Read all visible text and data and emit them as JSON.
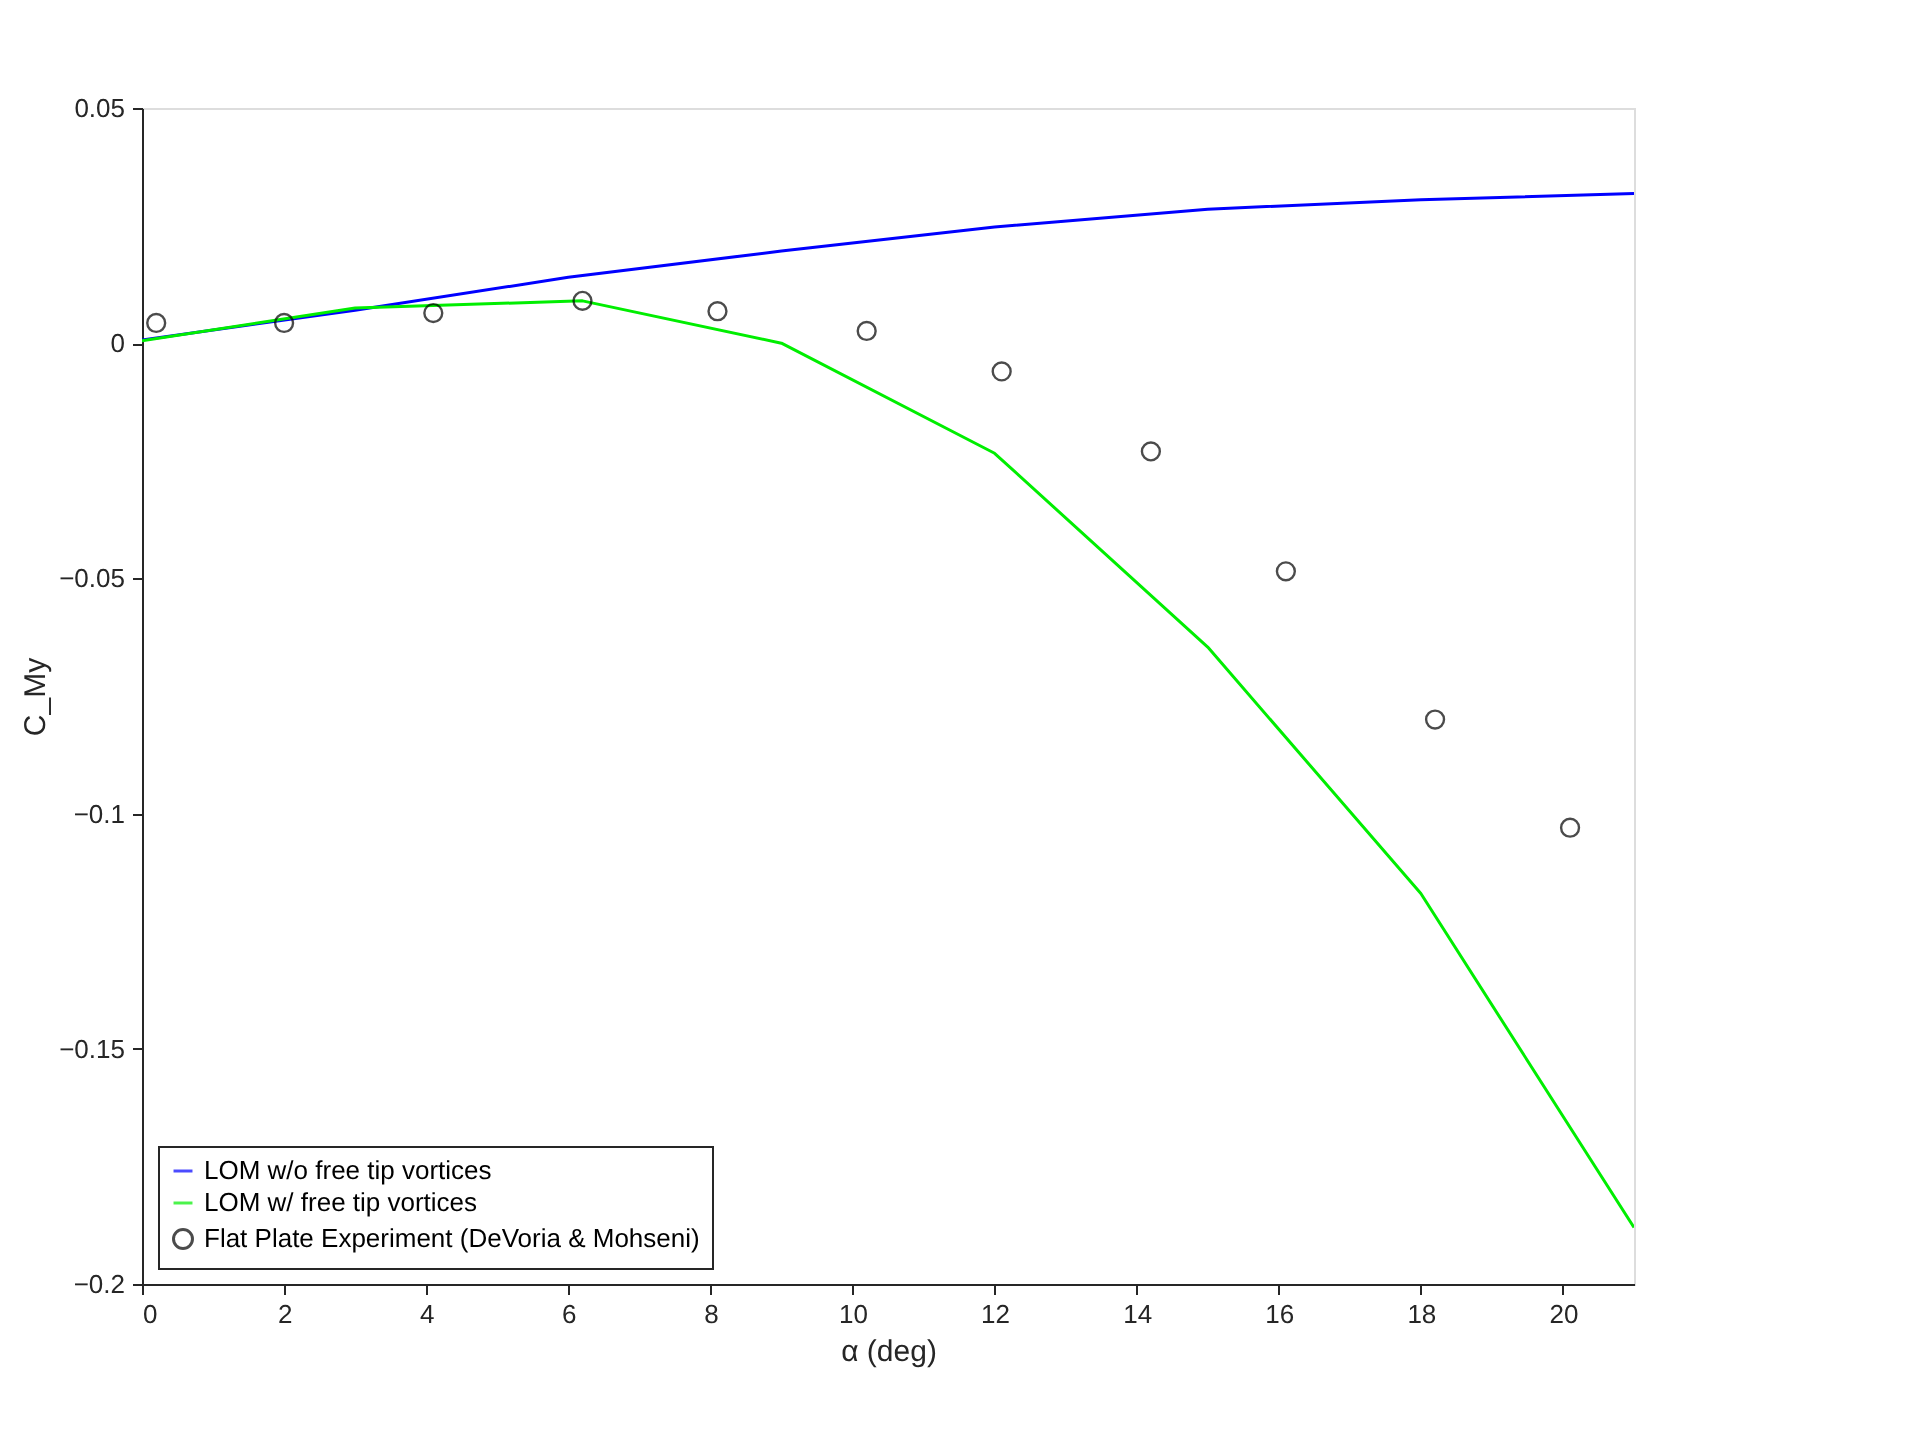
{
  "chart_data": {
    "type": "line",
    "xlabel": "α (deg)",
    "ylabel": "C_My",
    "xlim": [
      0,
      21
    ],
    "xticks": [
      0,
      2,
      4,
      6,
      8,
      10,
      12,
      14,
      16,
      18,
      20
    ],
    "ylim": [
      -0.2,
      0.05
    ],
    "yticks": [
      -0.2,
      -0.15,
      -0.1,
      -0.05,
      0,
      0.05
    ],
    "grid": false,
    "legend": "bottom left",
    "line_style": "solid",
    "series": [
      {
        "name": "LOM w/o free tip vortices",
        "color": "#0000ff",
        "marker": "none",
        "x": [
          0,
          3,
          6,
          9,
          12,
          15,
          18,
          21
        ],
        "values": [
          0.0007,
          0.007,
          0.014,
          0.0196,
          0.0247,
          0.0285,
          0.0305,
          0.0318
        ]
      },
      {
        "name": "LOM w/ free tip vortices",
        "color": "#00ee00",
        "marker": "none",
        "x": [
          0,
          3,
          6.2,
          9,
          12,
          15,
          18,
          21
        ],
        "values": [
          0.0005,
          0.0075,
          0.009,
          0.0,
          -0.0234,
          -0.0646,
          -0.117,
          -0.188
        ]
      },
      {
        "name": "Flat Plate Experiment (DeVoria & Mohseni)",
        "color": "#000000",
        "type": "scatter",
        "marker": "circle",
        "x": [
          0.2,
          2.0,
          4.1,
          6.2,
          8.1,
          10.2,
          12.1,
          14.2,
          16.1,
          18.2,
          20.1
        ],
        "values": [
          0.0043,
          0.0043,
          0.0064,
          0.009,
          0.0068,
          0.0026,
          -0.006,
          -0.023,
          -0.0485,
          -0.08,
          -0.103
        ]
      }
    ]
  }
}
